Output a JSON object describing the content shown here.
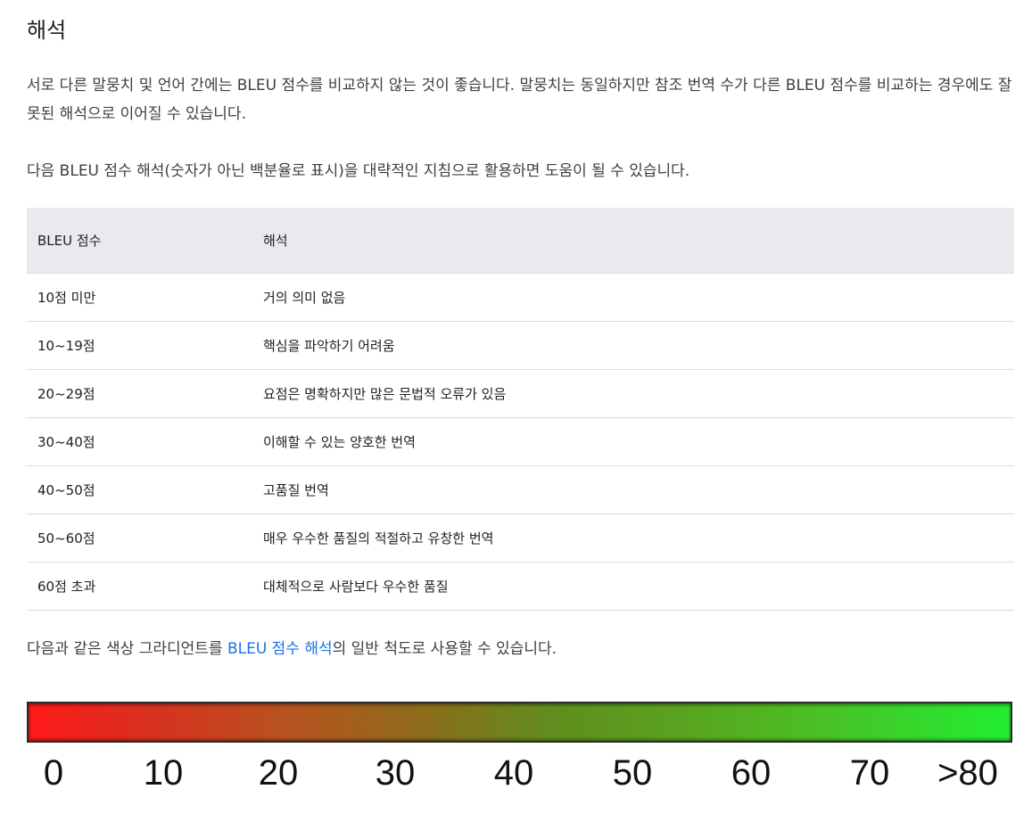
{
  "section": {
    "heading": "해석",
    "paragraph1": "서로 다른 말뭉치 및 언어 간에는 BLEU 점수를 비교하지 않는 것이 좋습니다. 말뭉치는 동일하지만 참조 번역 수가 다른 BLEU 점수를 비교하는 경우에도 잘못된 해석으로 이어질 수 있습니다.",
    "paragraph2": "다음 BLEU 점수 해석(숫자가 아닌 백분율로 표시)을 대략적인 지침으로 활용하면 도움이 될 수 있습니다."
  },
  "table": {
    "headers": [
      "BLEU 점수",
      "해석"
    ],
    "rows": [
      [
        "10점 미만",
        "거의 의미 없음"
      ],
      [
        "10~19점",
        "핵심을 파악하기 어려움"
      ],
      [
        "20~29점",
        "요점은 명확하지만 많은 문법적 오류가 있음"
      ],
      [
        "30~40점",
        "이해할 수 있는 양호한 번역"
      ],
      [
        "40~50점",
        "고품질 번역"
      ],
      [
        "50~60점",
        "매우 우수한 품질의 적절하고 유창한 번역"
      ],
      [
        "60점 초과",
        "대체적으로 사람보다 우수한 품질"
      ]
    ]
  },
  "gradient_text": {
    "before": "다음과 같은 색상 그라디언트를 ",
    "link": "BLEU 점수 해석",
    "after": "의 일반 척도로 사용할 수 있습니다."
  },
  "scale": {
    "labels": [
      "0",
      "10",
      "20",
      "30",
      "40",
      "50",
      "60",
      "70",
      ">80"
    ],
    "colors": {
      "start": "#ff1a1a",
      "mid": "#8d6c1c",
      "end": "#22ee33"
    }
  },
  "colors": {
    "link": "#1a73e8",
    "table_header_bg": "#e8eaed",
    "row_border": "#dadce0"
  }
}
